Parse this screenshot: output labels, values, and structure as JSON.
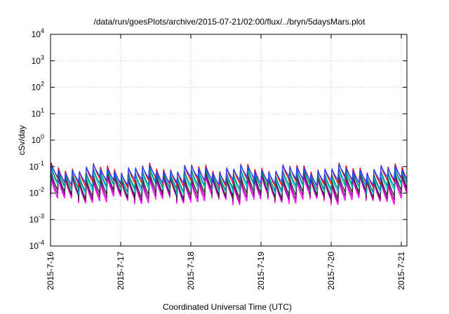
{
  "chart_data": {
    "type": "line",
    "title": "/data/run/goesPlots/archive/2015-07-21/02:00/flux/../bryn/5daysMars.plot",
    "xlabel": "Coordinated Universal Time (UTC)",
    "ylabel": "cSv/day",
    "yscale": "log",
    "ylim": [
      0.0001,
      10000
    ],
    "xlim": [
      "2015-07-16",
      "2015-07-21 02:00"
    ],
    "grid": true,
    "legend": "none",
    "x_ticks": [
      "2015-7-16",
      "2015-7-17",
      "2015-7-18",
      "2015-7-19",
      "2015-7-20",
      "2015-7-21"
    ],
    "y_ticks": [
      {
        "base": "10",
        "exp": "-4",
        "value": 0.0001
      },
      {
        "base": "10",
        "exp": "-3",
        "value": 0.001
      },
      {
        "base": "10",
        "exp": "-2",
        "value": 0.01
      },
      {
        "base": "10",
        "exp": "-1",
        "value": 0.1
      },
      {
        "base": "10",
        "exp": "0",
        "value": 1
      },
      {
        "base": "10",
        "exp": "1",
        "value": 10
      },
      {
        "base": "10",
        "exp": "2",
        "value": 100
      },
      {
        "base": "10",
        "exp": "3",
        "value": 1000
      },
      {
        "base": "10",
        "exp": "4",
        "value": 10000
      }
    ],
    "cycles_per_day": 10,
    "series": [
      {
        "color": "#ff00ff",
        "peak": 0.032,
        "trough": 0.0055
      },
      {
        "color": "#880088",
        "peak": 0.038,
        "trough": 0.007
      },
      {
        "color": "#333333",
        "peak": 0.045,
        "trough": 0.009
      },
      {
        "color": "#00cccc",
        "peak": 0.06,
        "trough": 0.014
      },
      {
        "color": "#008888",
        "peak": 0.065,
        "trough": 0.017
      },
      {
        "color": "#ff0000",
        "peak": 0.095,
        "trough": 0.025
      },
      {
        "color": "#2244ff",
        "peak": 0.085,
        "trough": 0.03
      }
    ]
  }
}
